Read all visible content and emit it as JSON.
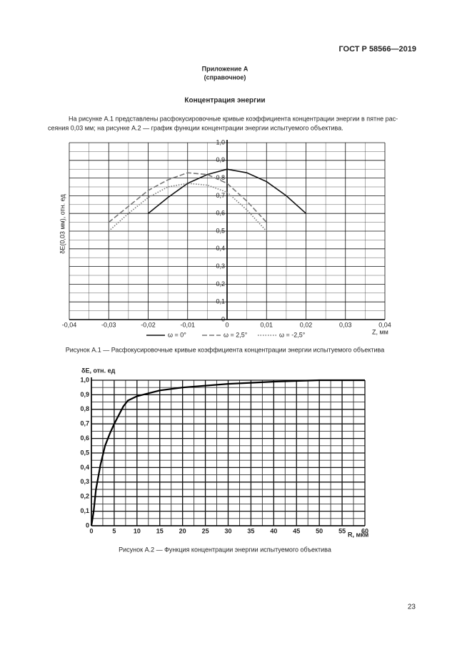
{
  "header": {
    "code": "ГОСТ Р 58566—2019"
  },
  "appendix": {
    "title": "Приложение А",
    "note": "(справочное)"
  },
  "section_title": "Концентрация энергии",
  "paragraph": [
    "На рисунке А.1 представлены расфокусировочные кривые коэффициента концентрации энергии в пятне рас-",
    "сеяния 0,03 мм; на рисунке А.2 — график функции концентрации энергии испытуемого объектива."
  ],
  "chart_data": [
    {
      "type": "line",
      "caption": "Рисунок А.1 — Расфокусировочные кривые коэффициента концентрации энергии испытуемого объектива",
      "y_label": "δE(0,03 мм), отн. ед",
      "x_label": "Z, мм",
      "x": [
        -0.03,
        -0.025,
        -0.02,
        -0.015,
        -0.01,
        -0.005,
        0,
        0.005,
        0.01,
        0.015,
        0.02
      ],
      "series": [
        {
          "name": "ω = 0°",
          "color": "#111111",
          "dash": "solid",
          "values": [
            null,
            null,
            0.6,
            0.69,
            0.77,
            0.82,
            0.85,
            0.83,
            0.78,
            0.7,
            0.6
          ]
        },
        {
          "name": "ω = 2,5°",
          "color": "#777777",
          "dash": "dashed",
          "values": [
            0.55,
            0.64,
            0.73,
            0.79,
            0.83,
            0.82,
            0.77,
            0.67,
            0.55,
            null,
            null
          ]
        },
        {
          "name": "ω = -2,5°",
          "color": "#777777",
          "dash": "dotted",
          "values": [
            0.5,
            0.6,
            0.69,
            0.75,
            0.77,
            0.76,
            0.72,
            0.62,
            0.5,
            null,
            null
          ]
        }
      ],
      "xlim": [
        -0.04,
        0.04
      ],
      "xticks": [
        {
          "value": -0.04,
          "label": "-0,04"
        },
        {
          "value": -0.03,
          "label": "-0,03"
        },
        {
          "value": -0.02,
          "label": "-0,02"
        },
        {
          "value": -0.01,
          "label": "-0,01"
        },
        0,
        {
          "value": 0.01,
          "label": "0,01"
        },
        {
          "value": 0.02,
          "label": "0,02"
        },
        {
          "value": 0.03,
          "label": "0,03"
        },
        {
          "value": 0.04,
          "label": "0,04"
        }
      ],
      "ylim": [
        0,
        1
      ],
      "yticks": [
        0,
        {
          "value": 0.1,
          "label": "0,1"
        },
        {
          "value": 0.2,
          "label": "0,2"
        },
        {
          "value": 0.3,
          "label": "0,3"
        },
        {
          "value": 0.4,
          "label": "0,4"
        },
        {
          "value": 0.5,
          "label": "0,5"
        },
        {
          "value": 0.6,
          "label": "0,6"
        },
        {
          "value": 0.7,
          "label": "0,7"
        },
        {
          "value": 0.8,
          "label": "0,8"
        },
        {
          "value": 0.9,
          "label": "0,9"
        },
        {
          "value": 1,
          "label": "1,0"
        }
      ],
      "grid": true,
      "legend": "bottom"
    },
    {
      "type": "line",
      "caption": "Рисунок А.2 — Функция концентрации энергии испытуемого объектива",
      "y_label": "δE, отн. ед",
      "x_label": "R, мкм",
      "x": [
        0,
        0.5,
        1,
        2,
        3,
        4,
        5,
        6,
        7,
        8,
        10,
        15,
        20,
        30,
        40,
        50,
        60
      ],
      "series": [
        {
          "color": "#000000",
          "dash": "solid",
          "values": [
            0,
            0.1,
            0.25,
            0.42,
            0.55,
            0.63,
            0.7,
            0.76,
            0.82,
            0.86,
            0.89,
            0.93,
            0.95,
            0.975,
            0.99,
            1.0,
            1.0
          ]
        }
      ],
      "xlim": [
        0,
        60
      ],
      "xticks": [
        0,
        5,
        10,
        15,
        20,
        25,
        30,
        35,
        40,
        45,
        50,
        55,
        60
      ],
      "ylim": [
        0,
        1
      ],
      "yticks": [
        0,
        {
          "value": 0.1,
          "label": "0,1"
        },
        {
          "value": 0.2,
          "label": "0,2"
        },
        {
          "value": 0.3,
          "label": "0,3"
        },
        {
          "value": 0.4,
          "label": "0,4"
        },
        {
          "value": 0.5,
          "label": "0,5"
        },
        {
          "value": 0.6,
          "label": "0,6"
        },
        {
          "value": 0.7,
          "label": "0,7"
        },
        {
          "value": 0.8,
          "label": "0,8"
        },
        {
          "value": 0.9,
          "label": "0,9"
        },
        {
          "value": 1,
          "label": "1,0"
        }
      ],
      "grid": true
    }
  ],
  "page_number": "23"
}
